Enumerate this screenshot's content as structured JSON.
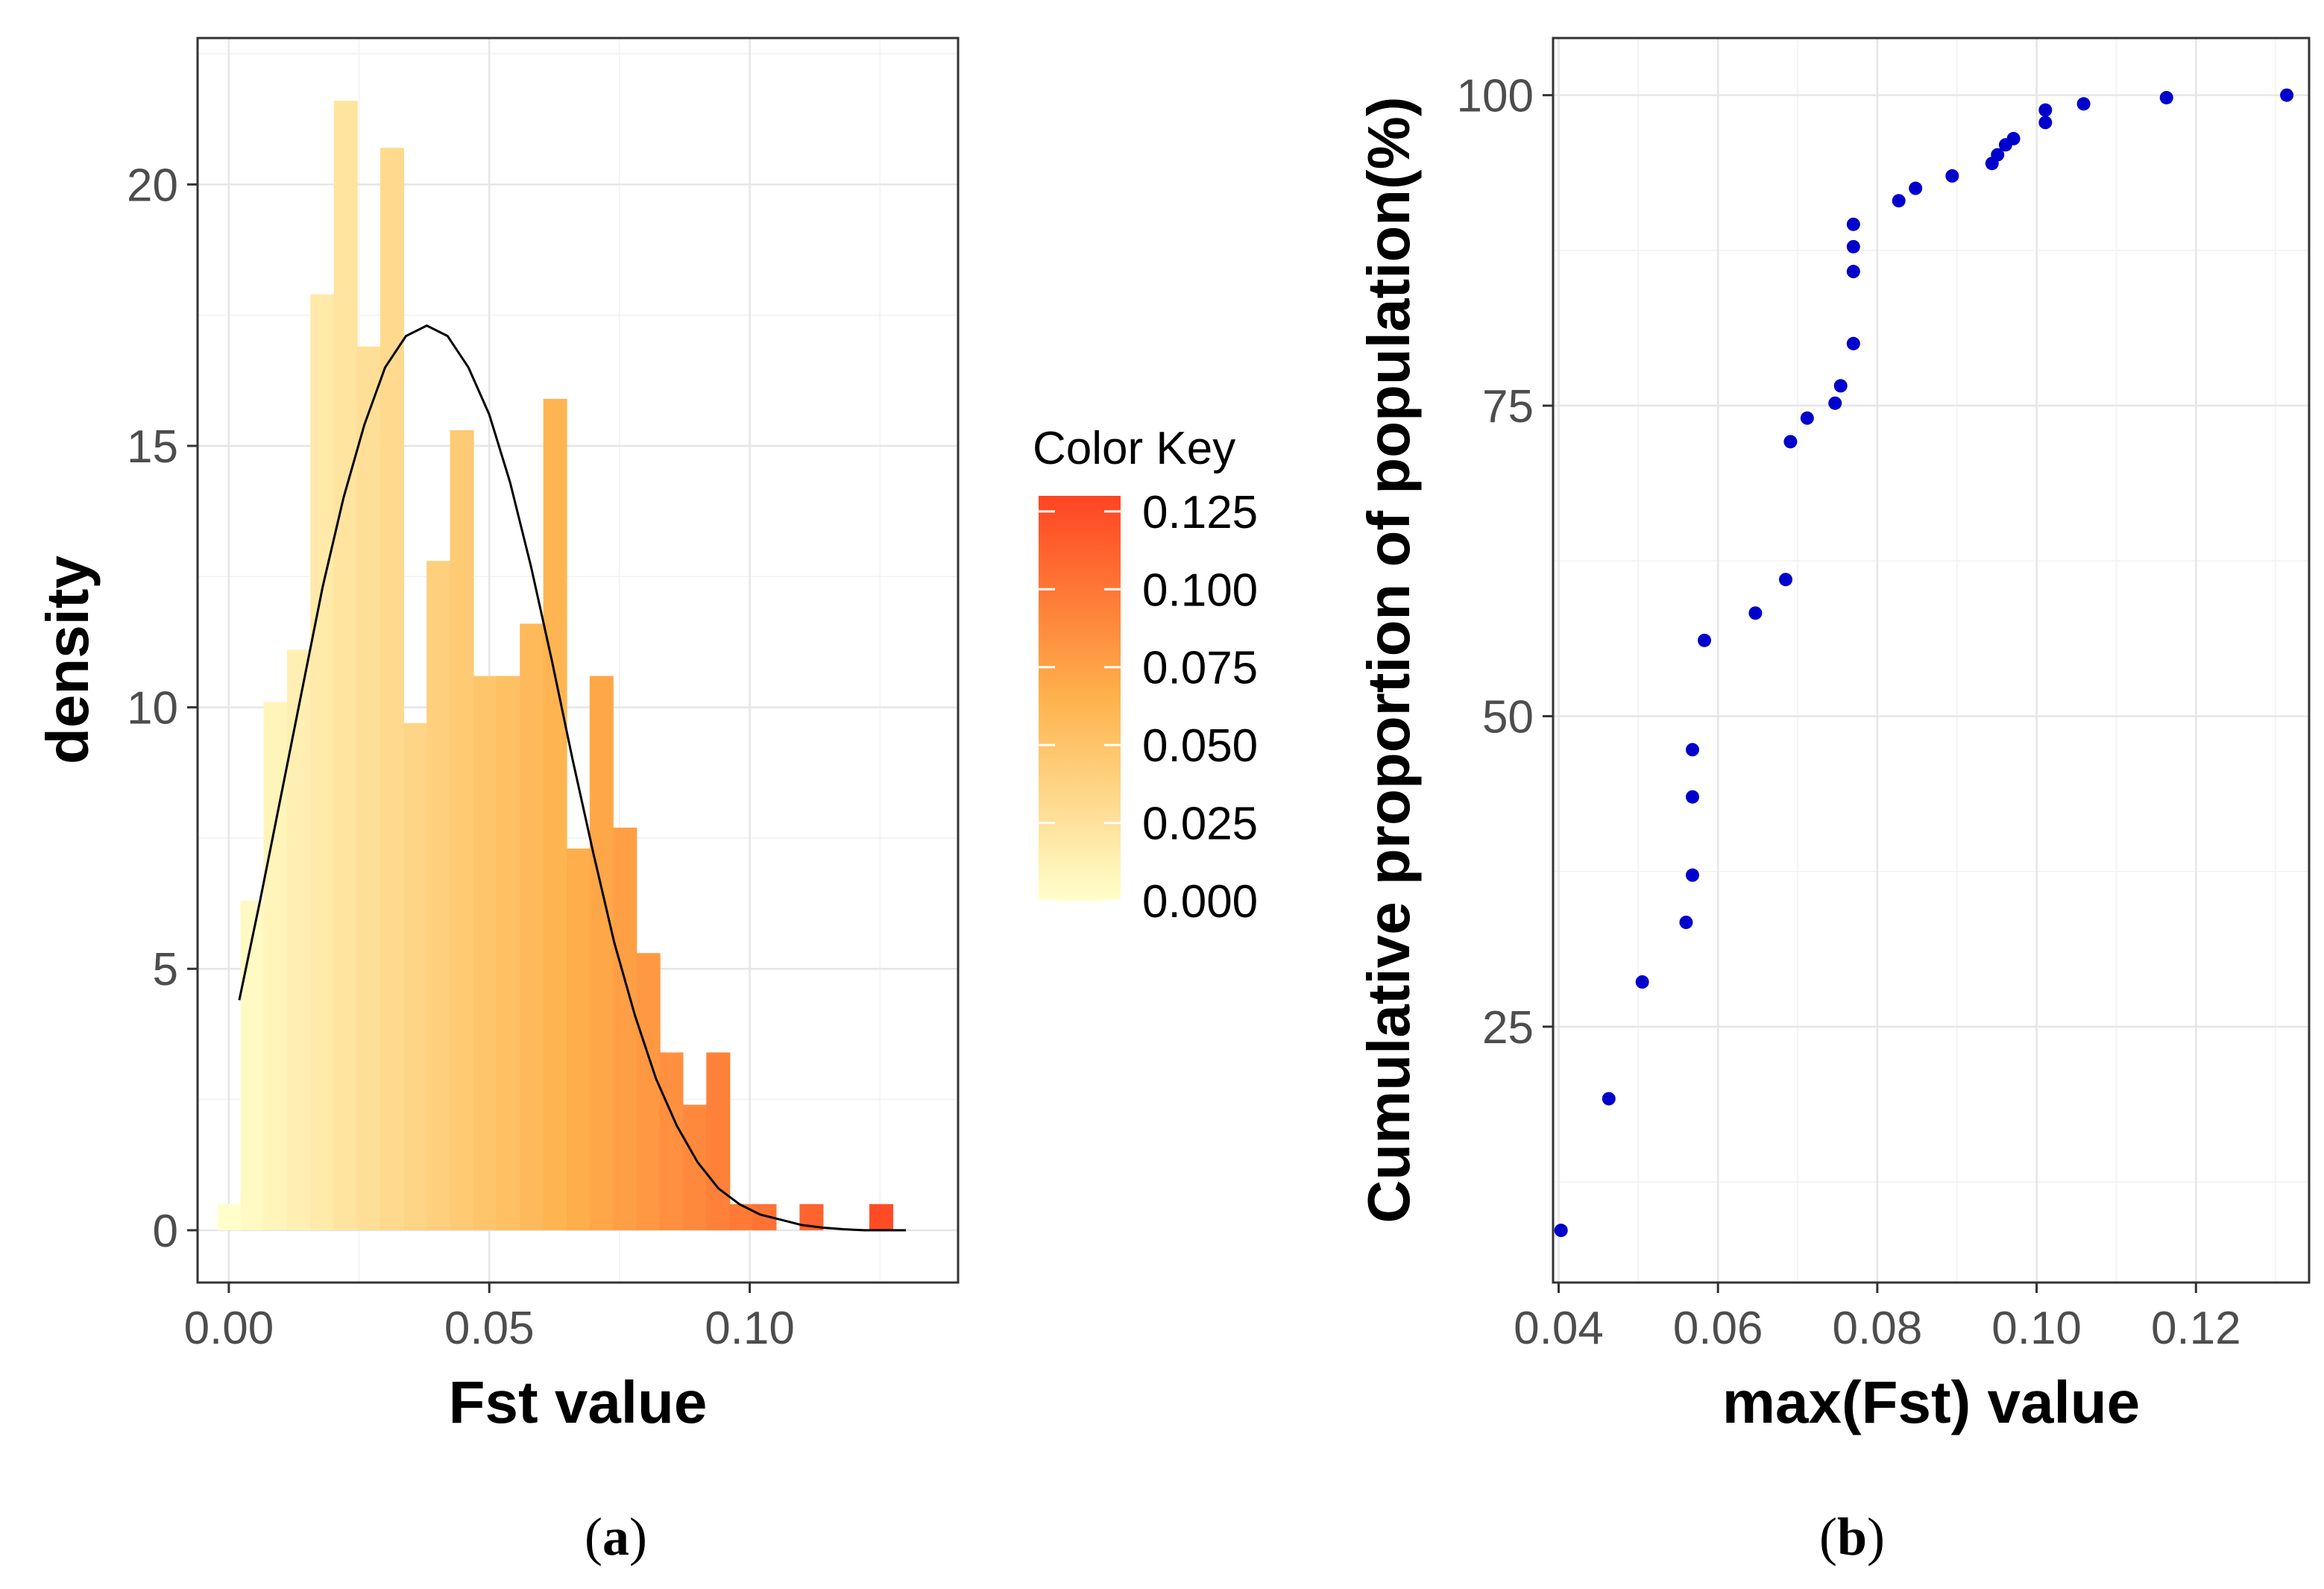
{
  "chart_data": [
    {
      "panel": "a",
      "type": "bar",
      "subtype": "histogram",
      "caption_letter": "a",
      "xlabel": "Fst value",
      "ylabel": "density",
      "xlim": [
        -0.006,
        0.14
      ],
      "ylim": [
        -1.0,
        22.8
      ],
      "x_ticks": [
        0.0,
        0.05,
        0.1
      ],
      "x_tick_labels": [
        "0.00",
        "0.05",
        "0.10"
      ],
      "y_ticks": [
        0,
        5,
        10,
        15,
        20
      ],
      "y_tick_labels": [
        "0",
        "5",
        "10",
        "15",
        "20"
      ],
      "bin_width": 0.00447,
      "bin_centers": [
        0.0,
        0.0045,
        0.0089,
        0.0134,
        0.0179,
        0.0224,
        0.0268,
        0.0313,
        0.0358,
        0.0402,
        0.0447,
        0.0492,
        0.0536,
        0.0581,
        0.0626,
        0.0671,
        0.0715,
        0.076,
        0.0805,
        0.0849,
        0.0894,
        0.0939,
        0.0983,
        0.1028,
        0.1073,
        0.1118,
        0.1162,
        0.1207,
        0.1252,
        0.1296
      ],
      "values": [
        0.5,
        6.3,
        10.1,
        11.1,
        17.9,
        21.6,
        16.9,
        20.7,
        9.7,
        12.8,
        15.3,
        10.6,
        10.6,
        11.6,
        15.9,
        7.3,
        10.6,
        7.7,
        5.3,
        3.4,
        2.4,
        3.4,
        0.5,
        0.5,
        0.0,
        0.5,
        0.0,
        0.0,
        0.5,
        0.0
      ],
      "density_curve": {
        "x": [
          0.002,
          0.006,
          0.01,
          0.014,
          0.018,
          0.022,
          0.026,
          0.03,
          0.034,
          0.038,
          0.042,
          0.046,
          0.05,
          0.054,
          0.058,
          0.062,
          0.066,
          0.07,
          0.074,
          0.078,
          0.082,
          0.086,
          0.09,
          0.094,
          0.098,
          0.102,
          0.106,
          0.11,
          0.114,
          0.118,
          0.122,
          0.126,
          0.13
        ],
        "y": [
          4.4,
          6.3,
          8.3,
          10.3,
          12.3,
          14.0,
          15.4,
          16.5,
          17.1,
          17.3,
          17.1,
          16.5,
          15.6,
          14.3,
          12.7,
          10.9,
          9.0,
          7.2,
          5.5,
          4.1,
          2.9,
          2.0,
          1.3,
          0.8,
          0.5,
          0.3,
          0.2,
          0.1,
          0.05,
          0.02,
          0.0,
          0.0,
          0.0
        ]
      },
      "color_key": {
        "title": "Color Key",
        "breaks": [
          0.0,
          0.025,
          0.05,
          0.075,
          0.1,
          0.125
        ],
        "labels": [
          "0.000",
          "0.025",
          "0.050",
          "0.075",
          "0.100",
          "0.125"
        ],
        "range": [
          0.0,
          0.13
        ],
        "low_color": "#FFFFCC",
        "mid_color": "#FEB24C",
        "high_color": "#FF4422"
      }
    },
    {
      "panel": "b",
      "type": "scatter",
      "caption_letter": "b",
      "xlabel": "max(Fst) value",
      "ylabel": "Cumulative proportion of population(%)",
      "xlim": [
        0.0393,
        0.1342
      ],
      "ylim": [
        4.4,
        104.6
      ],
      "x_ticks": [
        0.04,
        0.06,
        0.08,
        0.1,
        0.12
      ],
      "x_tick_labels": [
        "0.04",
        "0.06",
        "0.08",
        "0.10",
        "0.12"
      ],
      "y_ticks": [
        25,
        50,
        75,
        100
      ],
      "y_tick_labels": [
        "25",
        "50",
        "75",
        "100"
      ],
      "point_color": "#0000CC",
      "x": [
        0.0403,
        0.0463,
        0.0505,
        0.056,
        0.0568,
        0.0568,
        0.0568,
        0.0583,
        0.0647,
        0.0685,
        0.0691,
        0.0712,
        0.0747,
        0.0754,
        0.077,
        0.077,
        0.077,
        0.077,
        0.0827,
        0.0848,
        0.0894,
        0.0944,
        0.0951,
        0.0961,
        0.0971,
        0.1011,
        0.1011,
        0.1059,
        0.1163,
        0.1314
      ],
      "y": [
        8.6,
        19.2,
        28.6,
        33.4,
        37.2,
        43.5,
        47.3,
        56.1,
        58.3,
        61.0,
        72.1,
        74.0,
        75.2,
        76.6,
        80.0,
        85.8,
        87.8,
        89.6,
        91.5,
        92.5,
        93.5,
        94.5,
        95.2,
        96.0,
        96.5,
        97.8,
        98.8,
        99.3,
        99.8,
        100.0
      ]
    }
  ]
}
